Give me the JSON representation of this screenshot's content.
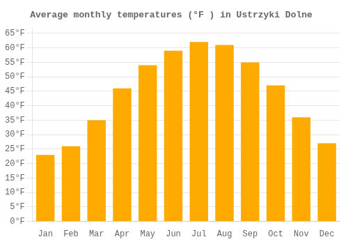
{
  "chart_data": {
    "type": "bar",
    "title": "Average monthly temperatures (°F ) in Ustrzyki Dolne",
    "categories": [
      "Jan",
      "Feb",
      "Mar",
      "Apr",
      "May",
      "Jun",
      "Jul",
      "Aug",
      "Sep",
      "Oct",
      "Nov",
      "Dec"
    ],
    "values": [
      23,
      26,
      35,
      46,
      54,
      59,
      62,
      61,
      55,
      47,
      36,
      27
    ],
    "color": "#FFAA00",
    "ylim": [
      0,
      67
    ],
    "yticks": [
      {
        "value": 0,
        "label": "0°F"
      },
      {
        "value": 5,
        "label": "5°F"
      },
      {
        "value": 10,
        "label": "10°F"
      },
      {
        "value": 15,
        "label": "15°F"
      },
      {
        "value": 20,
        "label": "20°F"
      },
      {
        "value": 25,
        "label": "25°F"
      },
      {
        "value": 30,
        "label": "30°F"
      },
      {
        "value": 35,
        "label": "35°F"
      },
      {
        "value": 40,
        "label": "40°F"
      },
      {
        "value": 45,
        "label": "45°F"
      },
      {
        "value": 50,
        "label": "50°F"
      },
      {
        "value": 55,
        "label": "55°F"
      },
      {
        "value": 60,
        "label": "60°F"
      },
      {
        "value": 65,
        "label": "65°F"
      }
    ],
    "grid": true
  }
}
